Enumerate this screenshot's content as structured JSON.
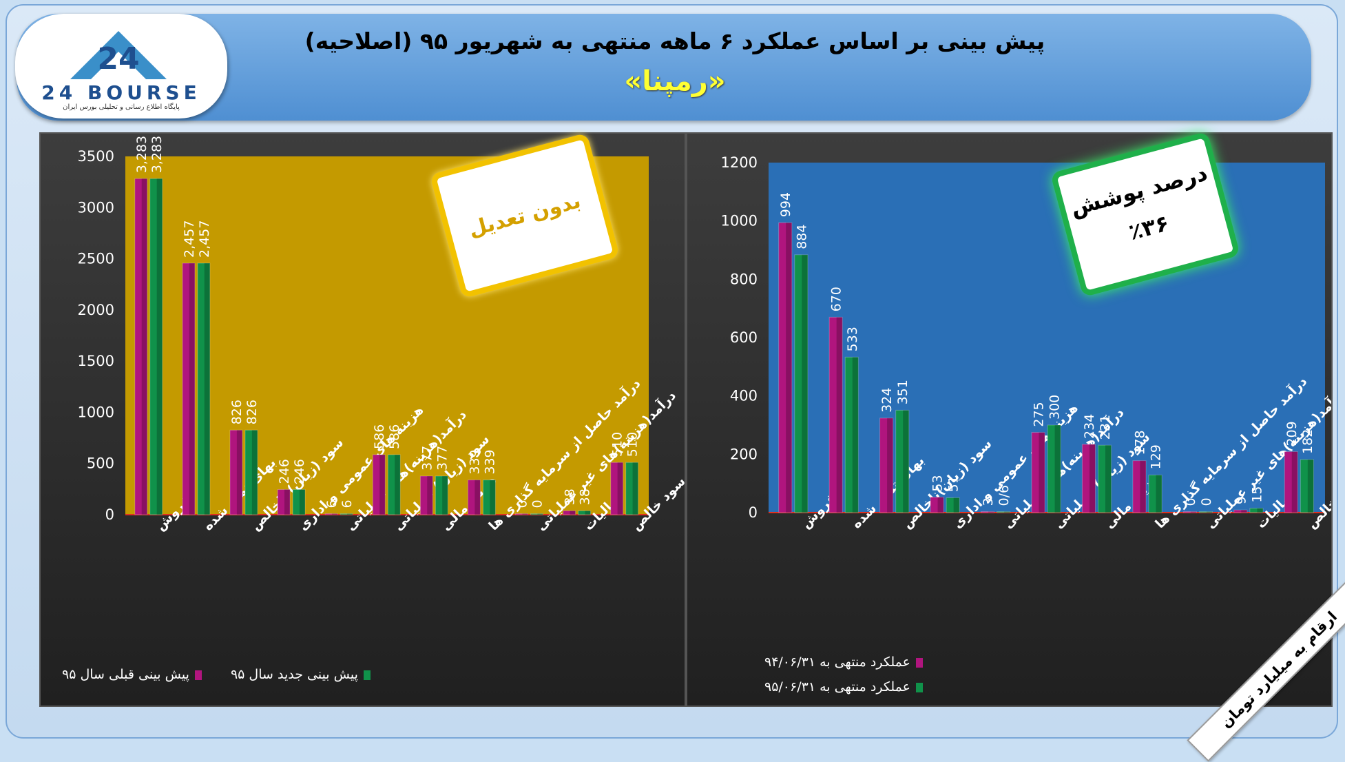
{
  "header": {
    "title": "پیش بینی بر اساس عملکرد ۶ ماهه منتهی به شهریور ۹۵ (اصلاحیه)",
    "subtitle": "«رمپنا»"
  },
  "logo": {
    "name": "24 BOURSE",
    "tagline": "پایگاه اطلاع رسانی و تحلیلی بورس ایران"
  },
  "colors": {
    "series_a": "#b0157e",
    "series_b": "#10924a",
    "left_plot_bg": "#c49a00",
    "right_plot_bg": "#2a6fb6"
  },
  "badges": {
    "left": "بدون تعدیل",
    "right_line1": "درصد پوشش",
    "right_line2": "٪۳۶"
  },
  "units_label": "ارقام به میلیارد تومان",
  "chart_data": [
    {
      "type": "bar",
      "categories": [
        "فروش",
        "بهای تمام شده",
        "سود (زیان) ناخالص",
        "هزینه های عمومی و اداری",
        "درآمد(هزینه)های عملیاتی",
        "سود (زیان) عملیاتی",
        "هزینه مالی",
        "درآمد حاصل از سرمایه گذاری ها",
        "درآمد(هزینه)های غیر عملیاتی",
        "مالیات",
        "سود خالص"
      ],
      "series": [
        {
          "name": "پیش بینی قبلی سال ۹۵",
          "values": [
            3283,
            2457,
            826,
            246,
            6,
            586,
            377,
            339,
            0,
            38,
            510
          ],
          "labels": [
            "3,283",
            "2,457",
            "826",
            "246",
            "6",
            "586",
            "377",
            "339",
            "0",
            "38",
            "510"
          ]
        },
        {
          "name": "پیش بینی جدید سال ۹۵",
          "values": [
            3283,
            2457,
            826,
            246,
            6,
            586,
            377,
            339,
            0,
            38,
            510
          ],
          "labels": [
            "3,283",
            "2,457",
            "826",
            "246",
            "6",
            "586",
            "377",
            "339",
            "0",
            "38",
            "510"
          ]
        }
      ],
      "yticks": [
        "0",
        "500",
        "1000",
        "1500",
        "2000",
        "2500",
        "3000",
        "3500"
      ],
      "ylim": [
        0,
        3500
      ],
      "legend_position": "bottom"
    },
    {
      "type": "bar",
      "categories": [
        "فروش",
        "بهای تمام شده",
        "سود (زیان)ناخالص",
        "هزینه های عمومی و اداری",
        "درآمد(هزینه)های عملیاتی",
        "سود (زیان) عملیاتی",
        "هزینه مالی",
        "درآمد حاصل از سرمایه گذاری ها",
        "درآمد(هزینه)های غیر عملیاتی",
        "مالیات",
        "سود خالص"
      ],
      "series": [
        {
          "name": "عملکرد منتهی به ۹۴/۰۶/۳۱",
          "values": [
            994,
            670,
            324,
            53,
            3,
            275,
            234,
            178,
            0,
            9,
            209
          ],
          "labels": [
            "994",
            "670",
            "324",
            "53",
            "3",
            "275",
            "234",
            "178",
            "0",
            "9",
            "209"
          ]
        },
        {
          "name": "عملکرد منتهی به ۹۵/۰۶/۳۱",
          "values": [
            884,
            533,
            351,
            51,
            0.6,
            300,
            231,
            129,
            0,
            15,
            182
          ],
          "labels": [
            "884",
            "533",
            "351",
            "51",
            "0/6",
            "300",
            "231",
            "129",
            "0",
            "15",
            "182"
          ]
        }
      ],
      "yticks": [
        "0",
        "200",
        "400",
        "600",
        "800",
        "1000",
        "1200"
      ],
      "ylim": [
        0,
        1200
      ],
      "legend_position": "bottom"
    }
  ]
}
